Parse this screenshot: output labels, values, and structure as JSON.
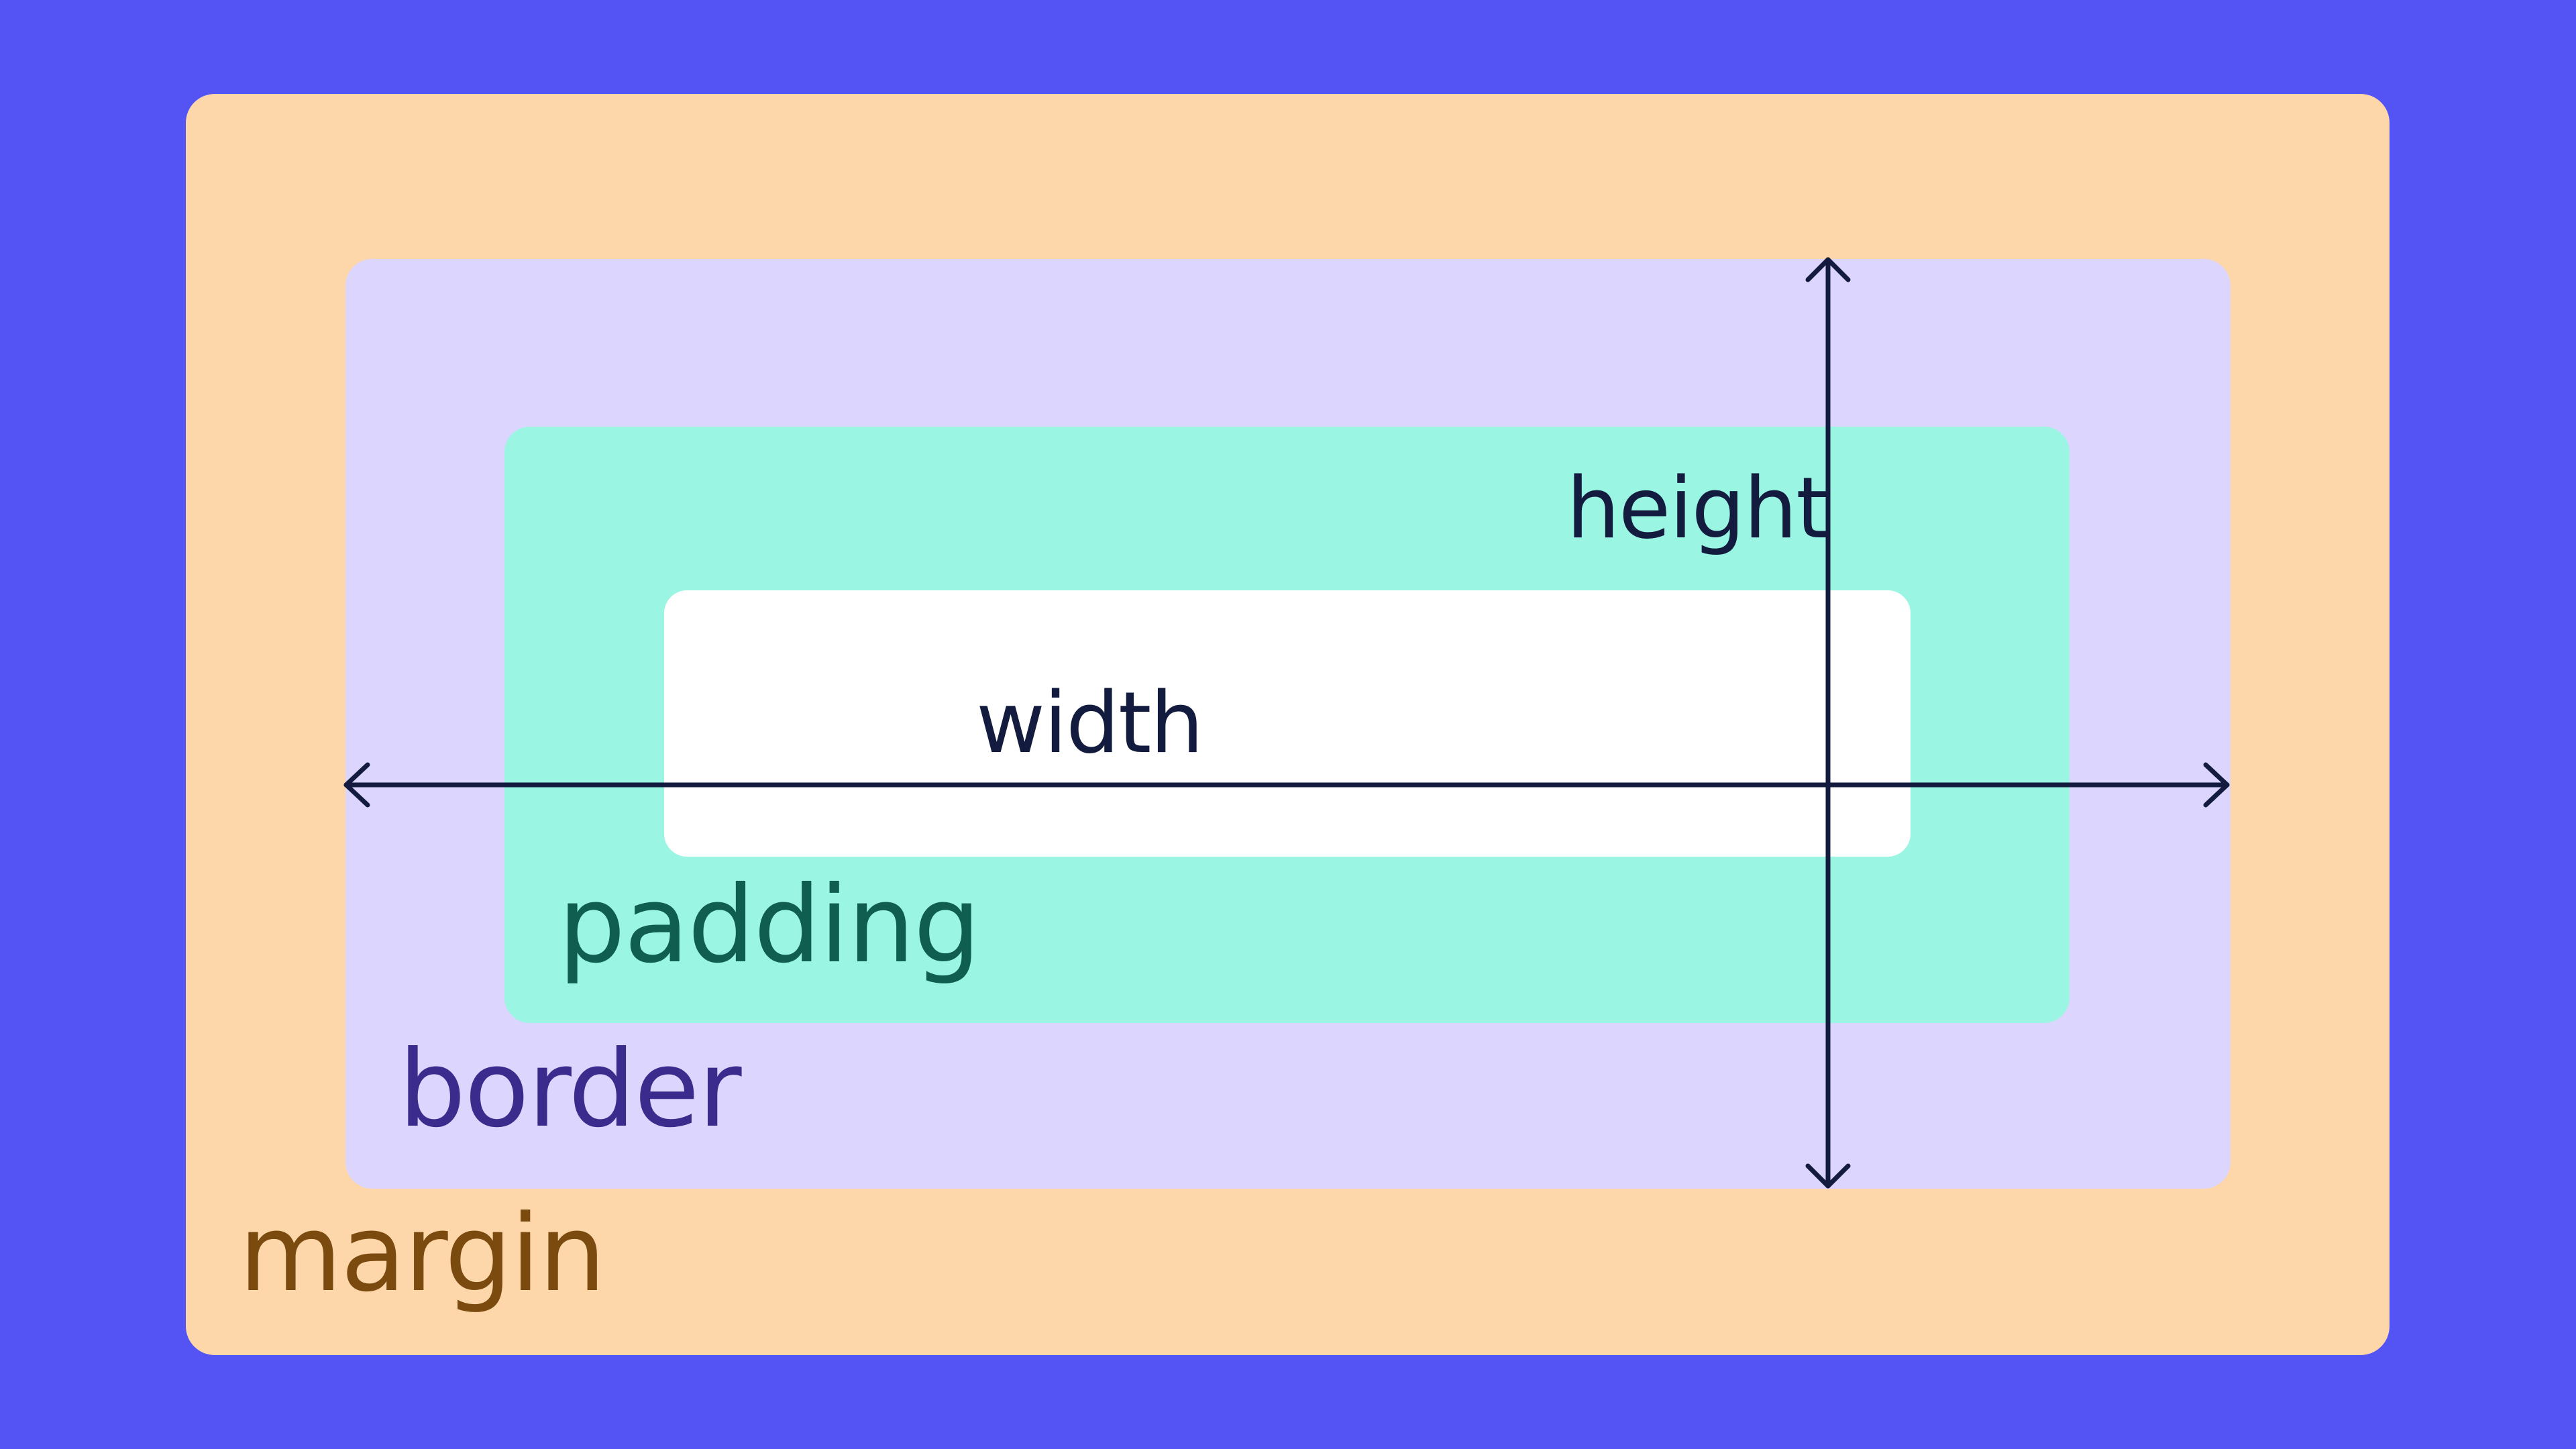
{
  "colors": {
    "background": "#5454f5",
    "margin": "#fdd6aa",
    "border": "#dcd6fe",
    "padding": "#9af5e3",
    "content": "#ffffff",
    "margin_text": "#7a4a0e",
    "border_text": "#3b2b8c",
    "padding_text": "#0f5e50",
    "dimension_text": "#131c3e",
    "arrow": "#131c3e"
  },
  "labels": {
    "margin": "margin",
    "border": "border",
    "padding": "padding",
    "width": "width",
    "height": "height"
  }
}
